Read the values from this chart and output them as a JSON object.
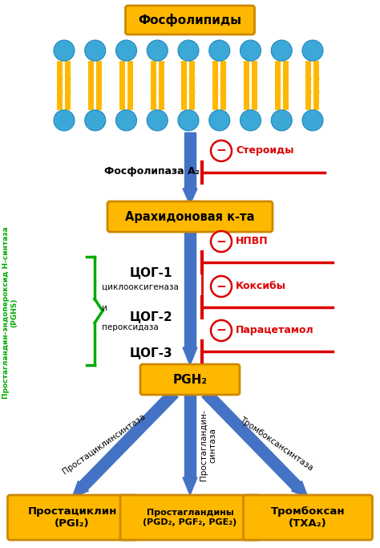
{
  "bg_color": "#ffffff",
  "box_color": "#FFB800",
  "box_edge_color": "#CC8800",
  "arrow_color": "#4472C4",
  "inhibit_color": "#DD0000",
  "green_color": "#00AA00",
  "membrane_head_color": "#3BA8D8",
  "membrane_tail_color": "#FFB800",
  "title": "Фосфолипиды",
  "arachidonic": "Арахидоновая к-та",
  "pgh2": "PGH₂",
  "phospholipase": "Фосфолипаза А₂",
  "steroids": "Стероиды",
  "npvp": "НПВП",
  "coxibs": "Коксибы",
  "paracetamol": "Парацетамол",
  "cog1": "ЦОГ-1",
  "cog2": "ЦОГ-2",
  "cog3": "ЦОГ-3",
  "cyclooxygenase": "циклооксигеназа",
  "and": "и",
  "peroxidase": "пероксидаза",
  "pghs_label": "Простагландин-эндопероксид Н-синтаза",
  "pghs_abbr": "(PGHS)",
  "prostacyclin_box": "Простациклин\n(PGI₂)",
  "prostaglandin_box": "Простагландины\n(PGD₂, PGF₂, PGE₂)",
  "thromboxane_box": "Тромбоксан\n(TXA₂)",
  "prostacyclin_syn": "Простациклинсинтаза",
  "prostaglandin_syn": "Простагландин-\nсинтаза",
  "thromboxane_syn": "Тромбоксансинтаза"
}
